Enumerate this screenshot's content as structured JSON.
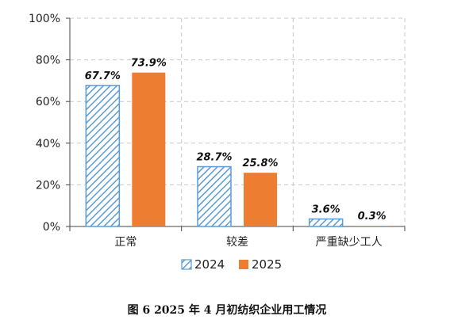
{
  "chart_data": {
    "type": "bar",
    "categories": [
      "正常",
      "较差",
      "严重缺少工人"
    ],
    "series": [
      {
        "name": "2024",
        "values": [
          67.7,
          28.7,
          3.6
        ],
        "labels": [
          "67.7%",
          "28.7%",
          "3.6%"
        ],
        "color": "#5B9BD5",
        "fill": "hatched"
      },
      {
        "name": "2025",
        "values": [
          73.9,
          25.8,
          0.3
        ],
        "labels": [
          "73.9%",
          "25.8%",
          "0.3%"
        ],
        "color": "#ED7D31",
        "fill": "solid"
      }
    ],
    "y_ticks": [
      "0%",
      "20%",
      "40%",
      "60%",
      "80%",
      "100%"
    ],
    "ylim": [
      0,
      100
    ],
    "grid": true,
    "legend_position": "bottom-center",
    "caption": "图 6   2025 年 4 月初纺织企业用工情况"
  }
}
